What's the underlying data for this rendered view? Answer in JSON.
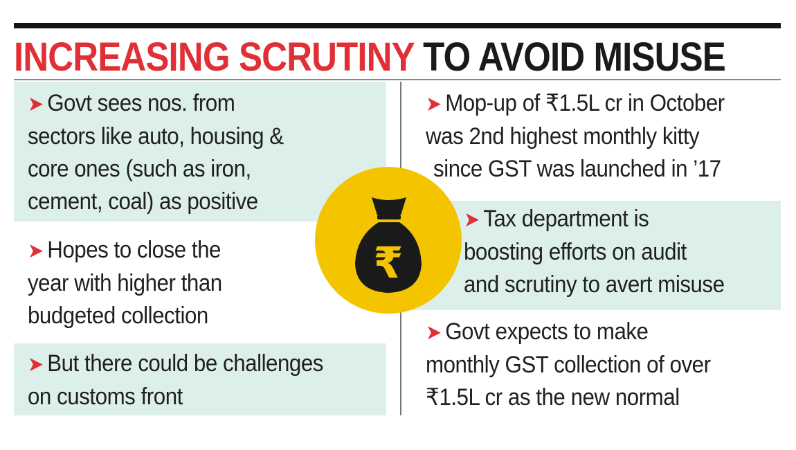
{
  "title": {
    "highlight": "INCREASING SCRUTINY",
    "rest": "TO AVOID MISUSE",
    "highlight_color": "#e03036",
    "text_color": "#1a1a1a"
  },
  "left_items": [
    {
      "lines": [
        "Govt sees nos. from",
        "sectors like auto, housing &",
        "core ones (such as iron,",
        "cement, coal) as positive"
      ]
    },
    {
      "lines": [
        "Hopes to close the",
        "year with higher than",
        "budgeted collection"
      ]
    },
    {
      "lines": [
        "But there could be challenges",
        "on customs front"
      ]
    }
  ],
  "right_items": [
    {
      "lines": [
        "Mop-up of ₹1.5L cr in October",
        "was 2nd highest monthly kitty",
        "since GST was launched in ’17"
      ]
    },
    {
      "lines": [
        "Tax department is",
        "boosting efforts on audit",
        "and scrutiny to avert misuse"
      ]
    },
    {
      "lines": [
        "Govt expects to make",
        "monthly GST collection of over",
        "₹1.5L cr as the new normal"
      ]
    }
  ],
  "icon": {
    "name": "rupee-money-bag-icon",
    "symbol": "₹",
    "coin_color": "#f5c400",
    "bag_color": "#1a1a1a"
  },
  "colors": {
    "band": "#dcefeb",
    "bullet": "#e03036"
  }
}
